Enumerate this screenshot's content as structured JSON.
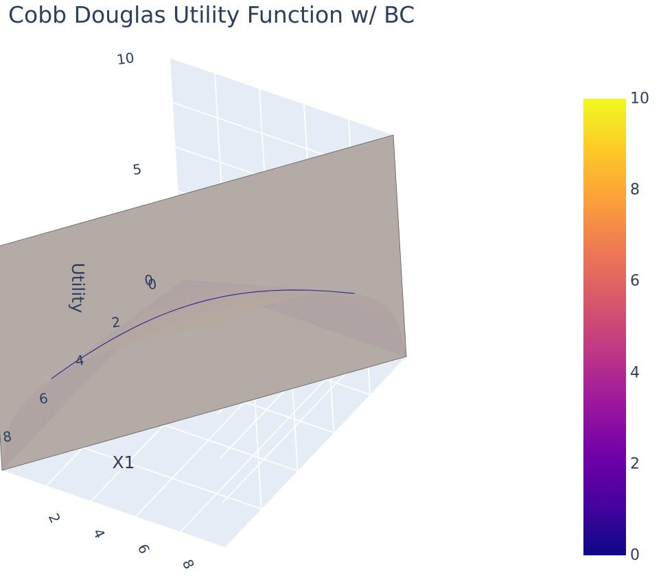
{
  "chart": {
    "title": "Cobb Douglas Utility Function w/ BC"
  },
  "chart_data": {
    "type": "surface",
    "title": "Cobb Douglas Utility Function w/ BC",
    "axes": {
      "x1": {
        "label": "X1",
        "range": [
          0,
          10
        ],
        "ticks": [
          "0",
          "2",
          "4",
          "6",
          "8",
          "10"
        ]
      },
      "x2": {
        "label": "",
        "range": [
          0,
          10
        ],
        "ticks": [
          "2",
          "4",
          "6",
          "8"
        ]
      },
      "z": {
        "label": "Utility",
        "range": [
          0,
          10
        ],
        "ticks": [
          "0",
          "5",
          "10"
        ]
      }
    },
    "series": [
      {
        "type": "surface",
        "function": "U = sqrt(X1 * X2)",
        "x1_range": [
          0,
          10
        ],
        "x2_range": [
          0,
          10
        ],
        "colorscale": "Plasma",
        "cmin": 0,
        "cmax": 10
      },
      {
        "type": "plane",
        "constraint": "X1 + X2 = 10",
        "z_range": [
          0,
          10
        ],
        "color": "#b3a9a4"
      },
      {
        "type": "line",
        "description": "indifference curve on budget constraint",
        "color": "#2f2f8f"
      }
    ],
    "colorbar": {
      "ticks": [
        "0",
        "2",
        "4",
        "6",
        "8",
        "10"
      ],
      "min": 0,
      "max": 10
    },
    "grid": true
  },
  "colors": {
    "background": "#e5ecf6",
    "grid": "#ffffff",
    "text": "#2a3f5f",
    "plane": "#b3a9a4",
    "plasma": [
      "#0d0887",
      "#46039f",
      "#7201a8",
      "#9c179e",
      "#bd3786",
      "#d8576b",
      "#ed7953",
      "#fb9f3a",
      "#fdca26",
      "#f0f921"
    ]
  }
}
